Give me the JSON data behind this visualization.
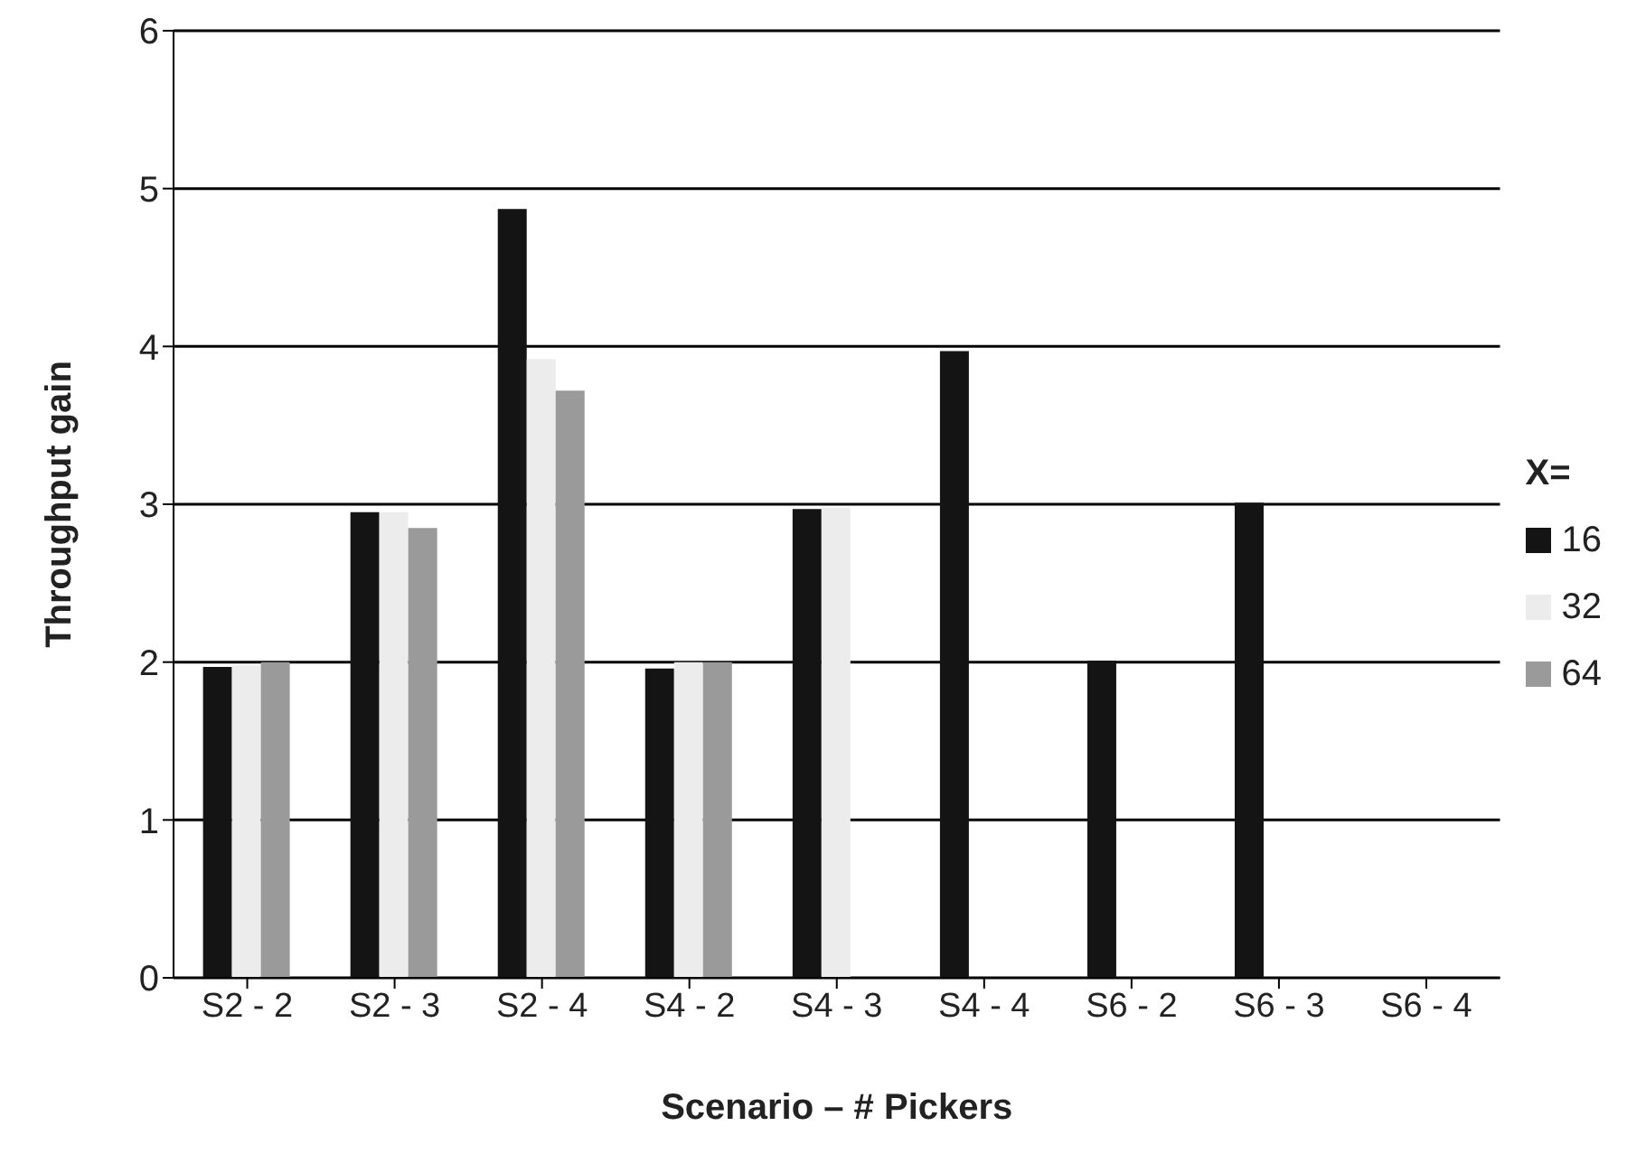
{
  "chart_data": {
    "type": "bar",
    "xlabel": "Scenario – # Pickers",
    "ylabel": "Throughput  gain",
    "legend_title": "X=",
    "categories": [
      "S2 - 2",
      "S2 - 3",
      "S2 - 4",
      "S4 - 2",
      "S4 - 3",
      "S4 - 4",
      "S6 - 2",
      "S6 - 3",
      "S6 - 4"
    ],
    "series": [
      {
        "name": "16",
        "color": "#141414",
        "values": [
          1.97,
          2.95,
          4.87,
          1.96,
          2.97,
          3.97,
          2.01,
          3.01,
          null
        ]
      },
      {
        "name": "32",
        "color": "#ececec",
        "values": [
          1.98,
          2.95,
          3.92,
          2.0,
          2.98,
          null,
          null,
          null,
          null
        ]
      },
      {
        "name": "64",
        "color": "#9a9a9a",
        "values": [
          2.0,
          2.85,
          3.72,
          2.0,
          null,
          null,
          null,
          null,
          null
        ]
      }
    ],
    "ylim": [
      0,
      6
    ],
    "yticks": [
      0,
      1,
      2,
      3,
      4,
      5,
      6
    ],
    "grid": "y",
    "legend": "right"
  }
}
